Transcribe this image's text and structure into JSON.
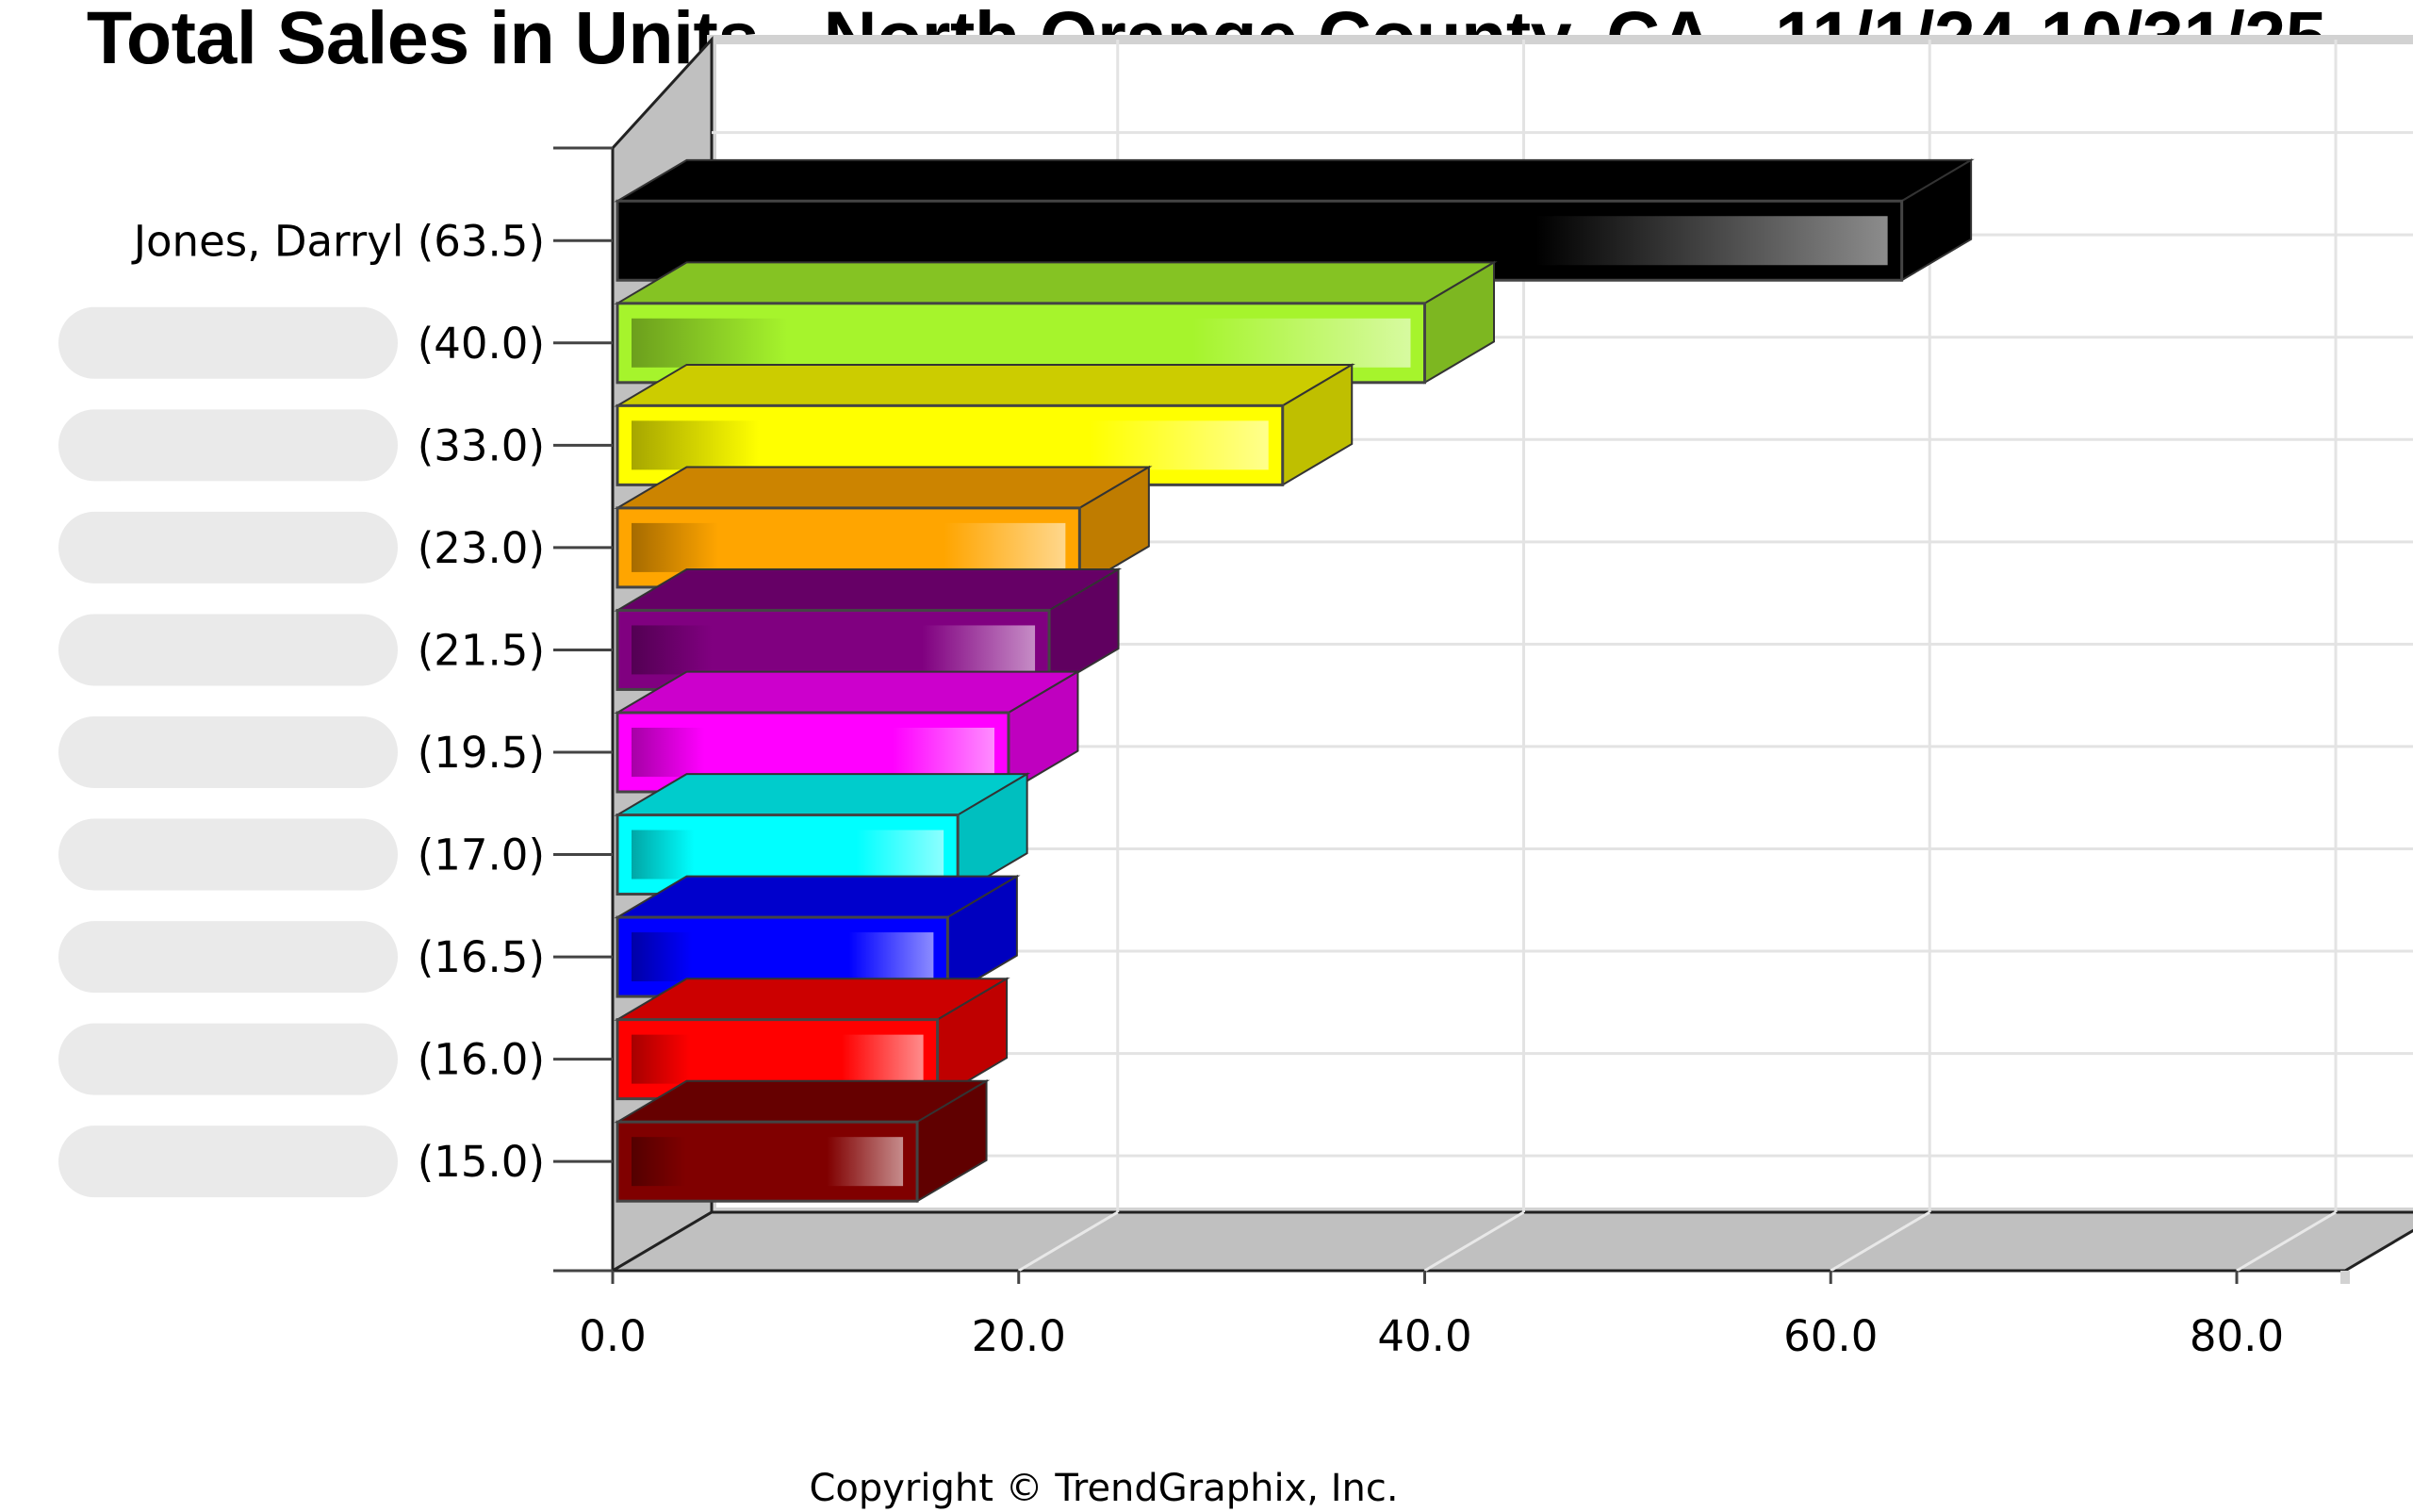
{
  "chart_data": {
    "type": "bar",
    "orientation": "horizontal",
    "title": "Total Sales in Units - North Orange County, CA - 11/1/24-10/31/25",
    "categories": [
      "Jones, Darryl (63.5)",
      "(40.0)",
      "(33.0)",
      "(23.0)",
      "(21.5)",
      "(19.5)",
      "(17.0)",
      "(16.5)",
      "(16.0)",
      "(15.0)"
    ],
    "values": [
      63.5,
      40.0,
      33.0,
      23.0,
      21.5,
      19.5,
      17.0,
      16.5,
      16.0,
      15.0
    ],
    "colors": [
      "#000000",
      "#a6f42c",
      "#ffff00",
      "#ffa500",
      "#800080",
      "#ff00ff",
      "#00ffff",
      "#0000ff",
      "#ff0000",
      "#800000"
    ],
    "xlim": [
      0,
      80
    ],
    "xticks": [
      "0.0",
      "20.0",
      "40.0",
      "60.0",
      "80.0"
    ],
    "tick_values": [
      0,
      20,
      40,
      60,
      80
    ],
    "grid": true,
    "style": "3d",
    "redacted_name_labels": true
  },
  "footer": {
    "copyright": "Copyright © TrendGraphix, Inc."
  }
}
